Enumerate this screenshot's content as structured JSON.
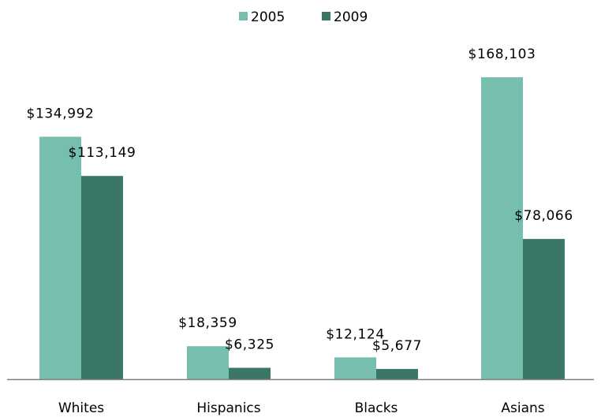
{
  "chart_data": {
    "type": "bar",
    "categories": [
      "Whites",
      "Hispanics",
      "Blacks",
      "Asians"
    ],
    "series": [
      {
        "name": "2005",
        "values": [
          134992,
          18359,
          12124,
          168103
        ],
        "labels": [
          "$134,992",
          "$18,359",
          "$12,124",
          "$168,103"
        ],
        "color": "#76bfae"
      },
      {
        "name": "2009",
        "values": [
          113149,
          6325,
          5677,
          78066
        ],
        "labels": [
          "$113,149",
          "$6,325",
          "$5,677",
          "$78,066"
        ],
        "color": "#3a7767"
      }
    ],
    "ylim": [
      0,
      168103
    ],
    "grid": false,
    "legend_position": "top-center",
    "axis_color": "#7f7f7f"
  }
}
